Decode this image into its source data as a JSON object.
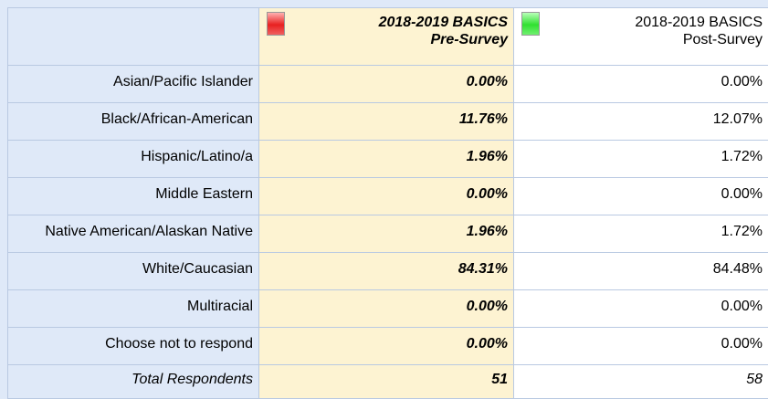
{
  "table": {
    "header": [
      {
        "title": "2018-2019 BASICS",
        "subtitle": "Pre-Survey"
      },
      {
        "title": "2018-2019 BASICS",
        "subtitle": "Post-Survey"
      }
    ],
    "rows": [
      [
        "Asian/Pacific Islander",
        "0.00%",
        "0.00%"
      ],
      [
        "Black/African-American",
        "11.76%",
        "12.07%"
      ],
      [
        "Hispanic/Latino/a",
        "1.96%",
        "1.72%"
      ],
      [
        "Middle Eastern",
        "0.00%",
        "0.00%"
      ],
      [
        "Native American/Alaskan Native",
        "1.96%",
        "1.72%"
      ],
      [
        "White/Caucasian",
        "84.31%",
        "84.48%"
      ],
      [
        "Multiracial",
        "0.00%",
        "0.00%"
      ],
      [
        "Choose not to respond",
        "0.00%",
        "0.00%"
      ]
    ],
    "total": [
      "Total Respondents",
      "51",
      "58"
    ]
  }
}
